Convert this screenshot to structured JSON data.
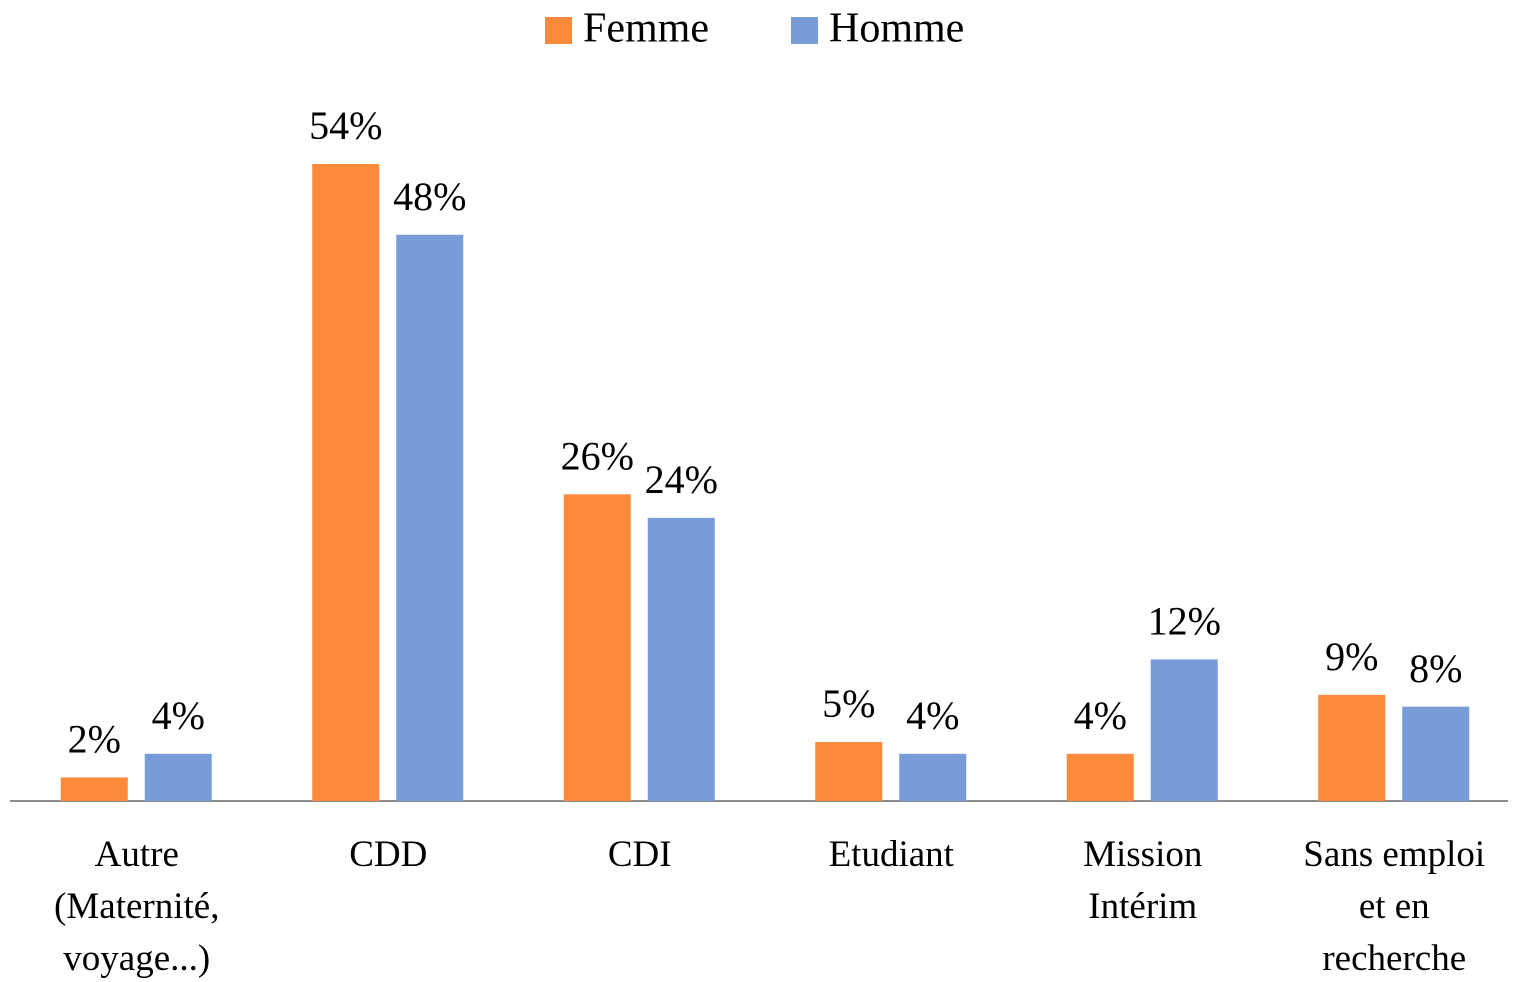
{
  "chart_data": {
    "type": "bar",
    "categories": [
      "Autre\n(Maternité,\nvoyage...)",
      "CDD",
      "CDI",
      "Etudiant",
      "Mission\nIntérim",
      "Sans emploi\net en\nrecherche"
    ],
    "series": [
      {
        "name": "Femme",
        "color": "#fd8a3b",
        "values": [
          2,
          54,
          26,
          5,
          4,
          9
        ],
        "value_labels": [
          "2%",
          "54%",
          "26%",
          "5%",
          "4%",
          "9%"
        ]
      },
      {
        "name": "Homme",
        "color": "#789cd8",
        "values": [
          4,
          48,
          24,
          4,
          12,
          8
        ],
        "value_labels": [
          "4%",
          "48%",
          "24%",
          "4%",
          "12%",
          "8%"
        ]
      }
    ],
    "legend": "top"
  }
}
